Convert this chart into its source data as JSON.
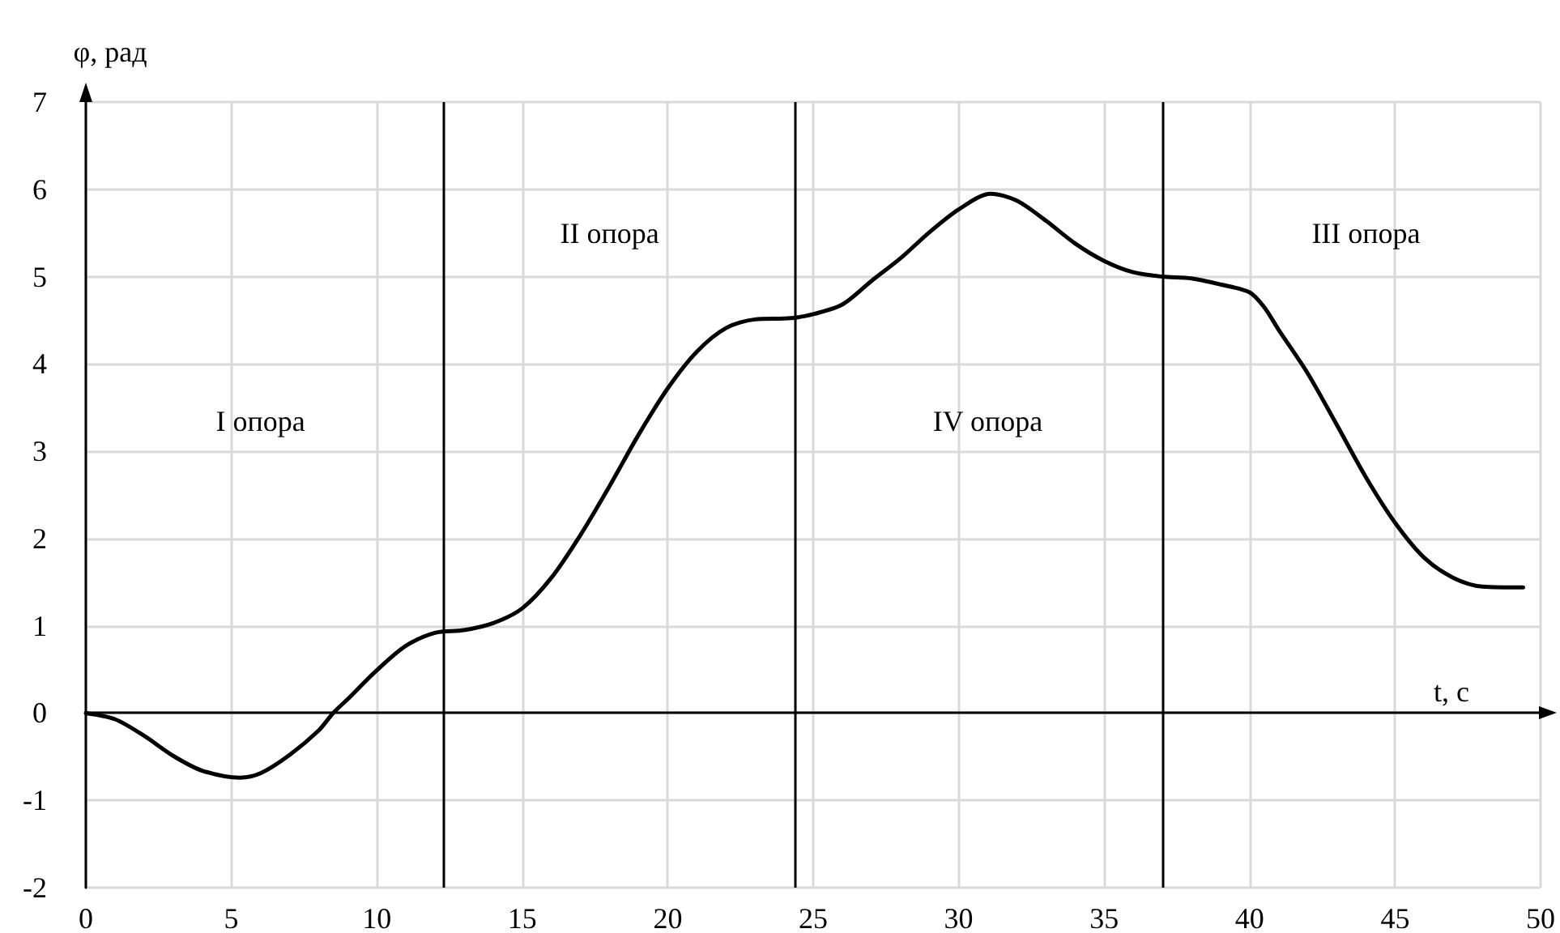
{
  "chart_data": {
    "type": "line",
    "xlabel": "t, с",
    "ylabel": "φ, рад",
    "x": [
      0,
      1,
      2,
      3,
      4,
      5.3,
      6,
      7,
      8,
      8.5,
      9,
      10,
      11,
      12,
      13,
      14,
      15,
      16,
      17,
      18,
      19,
      20,
      21,
      22,
      23,
      24,
      24.4,
      25,
      26,
      27,
      28,
      29,
      30,
      31.1,
      32,
      33,
      34,
      35,
      36,
      37,
      38,
      39,
      40,
      40.5,
      41,
      42,
      43,
      44,
      45,
      46,
      47,
      48,
      49.4
    ],
    "series": [
      {
        "color": "#000000",
        "values": [
          0,
          -0.07,
          -0.26,
          -0.49,
          -0.66,
          -0.74,
          -0.69,
          -0.48,
          -0.2,
          0,
          0.16,
          0.49,
          0.77,
          0.92,
          0.95,
          1.03,
          1.2,
          1.55,
          2.04,
          2.6,
          3.19,
          3.72,
          4.14,
          4.41,
          4.51,
          4.52,
          4.53,
          4.57,
          4.68,
          4.95,
          5.21,
          5.51,
          5.77,
          5.95,
          5.87,
          5.64,
          5.38,
          5.18,
          5.05,
          5.0,
          4.98,
          4.91,
          4.82,
          4.65,
          4.39,
          3.89,
          3.3,
          2.7,
          2.18,
          1.78,
          1.55,
          1.45,
          1.44
        ]
      }
    ],
    "xlim": [
      0,
      50
    ],
    "xticks": [
      0,
      5,
      10,
      15,
      20,
      25,
      30,
      35,
      40,
      45,
      50
    ],
    "ylim": [
      -2,
      7
    ],
    "yticks": [
      -2,
      -1,
      0,
      1,
      2,
      3,
      4,
      5,
      6,
      7
    ],
    "grid": true,
    "marker": "none",
    "line_style": "solid",
    "ref_lines": [
      {
        "axis": "x",
        "value": 12.3,
        "color": "#000000"
      },
      {
        "axis": "x",
        "value": 24.4,
        "color": "#000000"
      },
      {
        "axis": "x",
        "value": 37,
        "color": "#000000"
      }
    ],
    "annotations": [
      "I опора",
      "II опора",
      "IV опора",
      "III опора"
    ]
  }
}
